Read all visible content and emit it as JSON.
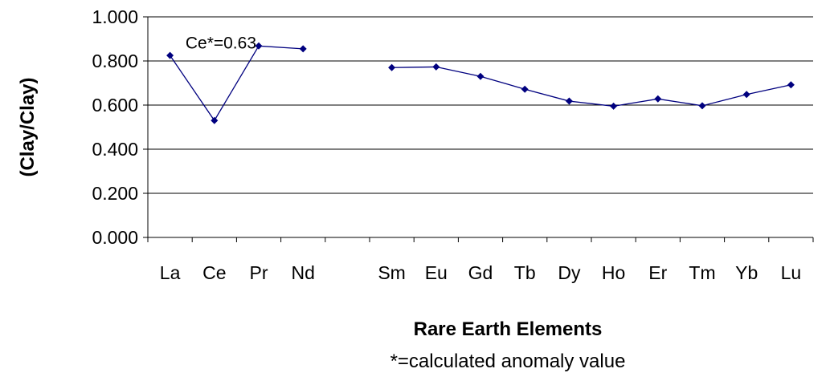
{
  "chart_data": {
    "type": "line",
    "categories": [
      "La",
      "Ce",
      "Pr",
      "Nd",
      "",
      "Sm",
      "Eu",
      "Gd",
      "Tb",
      "Dy",
      "Ho",
      "Er",
      "Tm",
      "Yb",
      "Lu"
    ],
    "series": [
      {
        "values": [
          0.825,
          0.53,
          0.868,
          0.855,
          null,
          0.77,
          0.773,
          0.73,
          0.672,
          0.618,
          0.595,
          0.628,
          0.597,
          0.648,
          0.692
        ],
        "color": "#00007f"
      }
    ],
    "ylim": [
      0,
      1
    ],
    "yticks": [
      "0.000",
      "0.200",
      "0.400",
      "0.600",
      "0.800",
      "1.000"
    ],
    "xlabel": "Rare Earth Elements",
    "ylabel": "(Clay/Clay)",
    "note": "*=calculated anomaly value",
    "annotation": {
      "text": "Ce*=0.63",
      "category": "Pr"
    },
    "grid": "horizontal",
    "colors": {
      "gridline": "#000000",
      "axis": "#000000"
    }
  }
}
